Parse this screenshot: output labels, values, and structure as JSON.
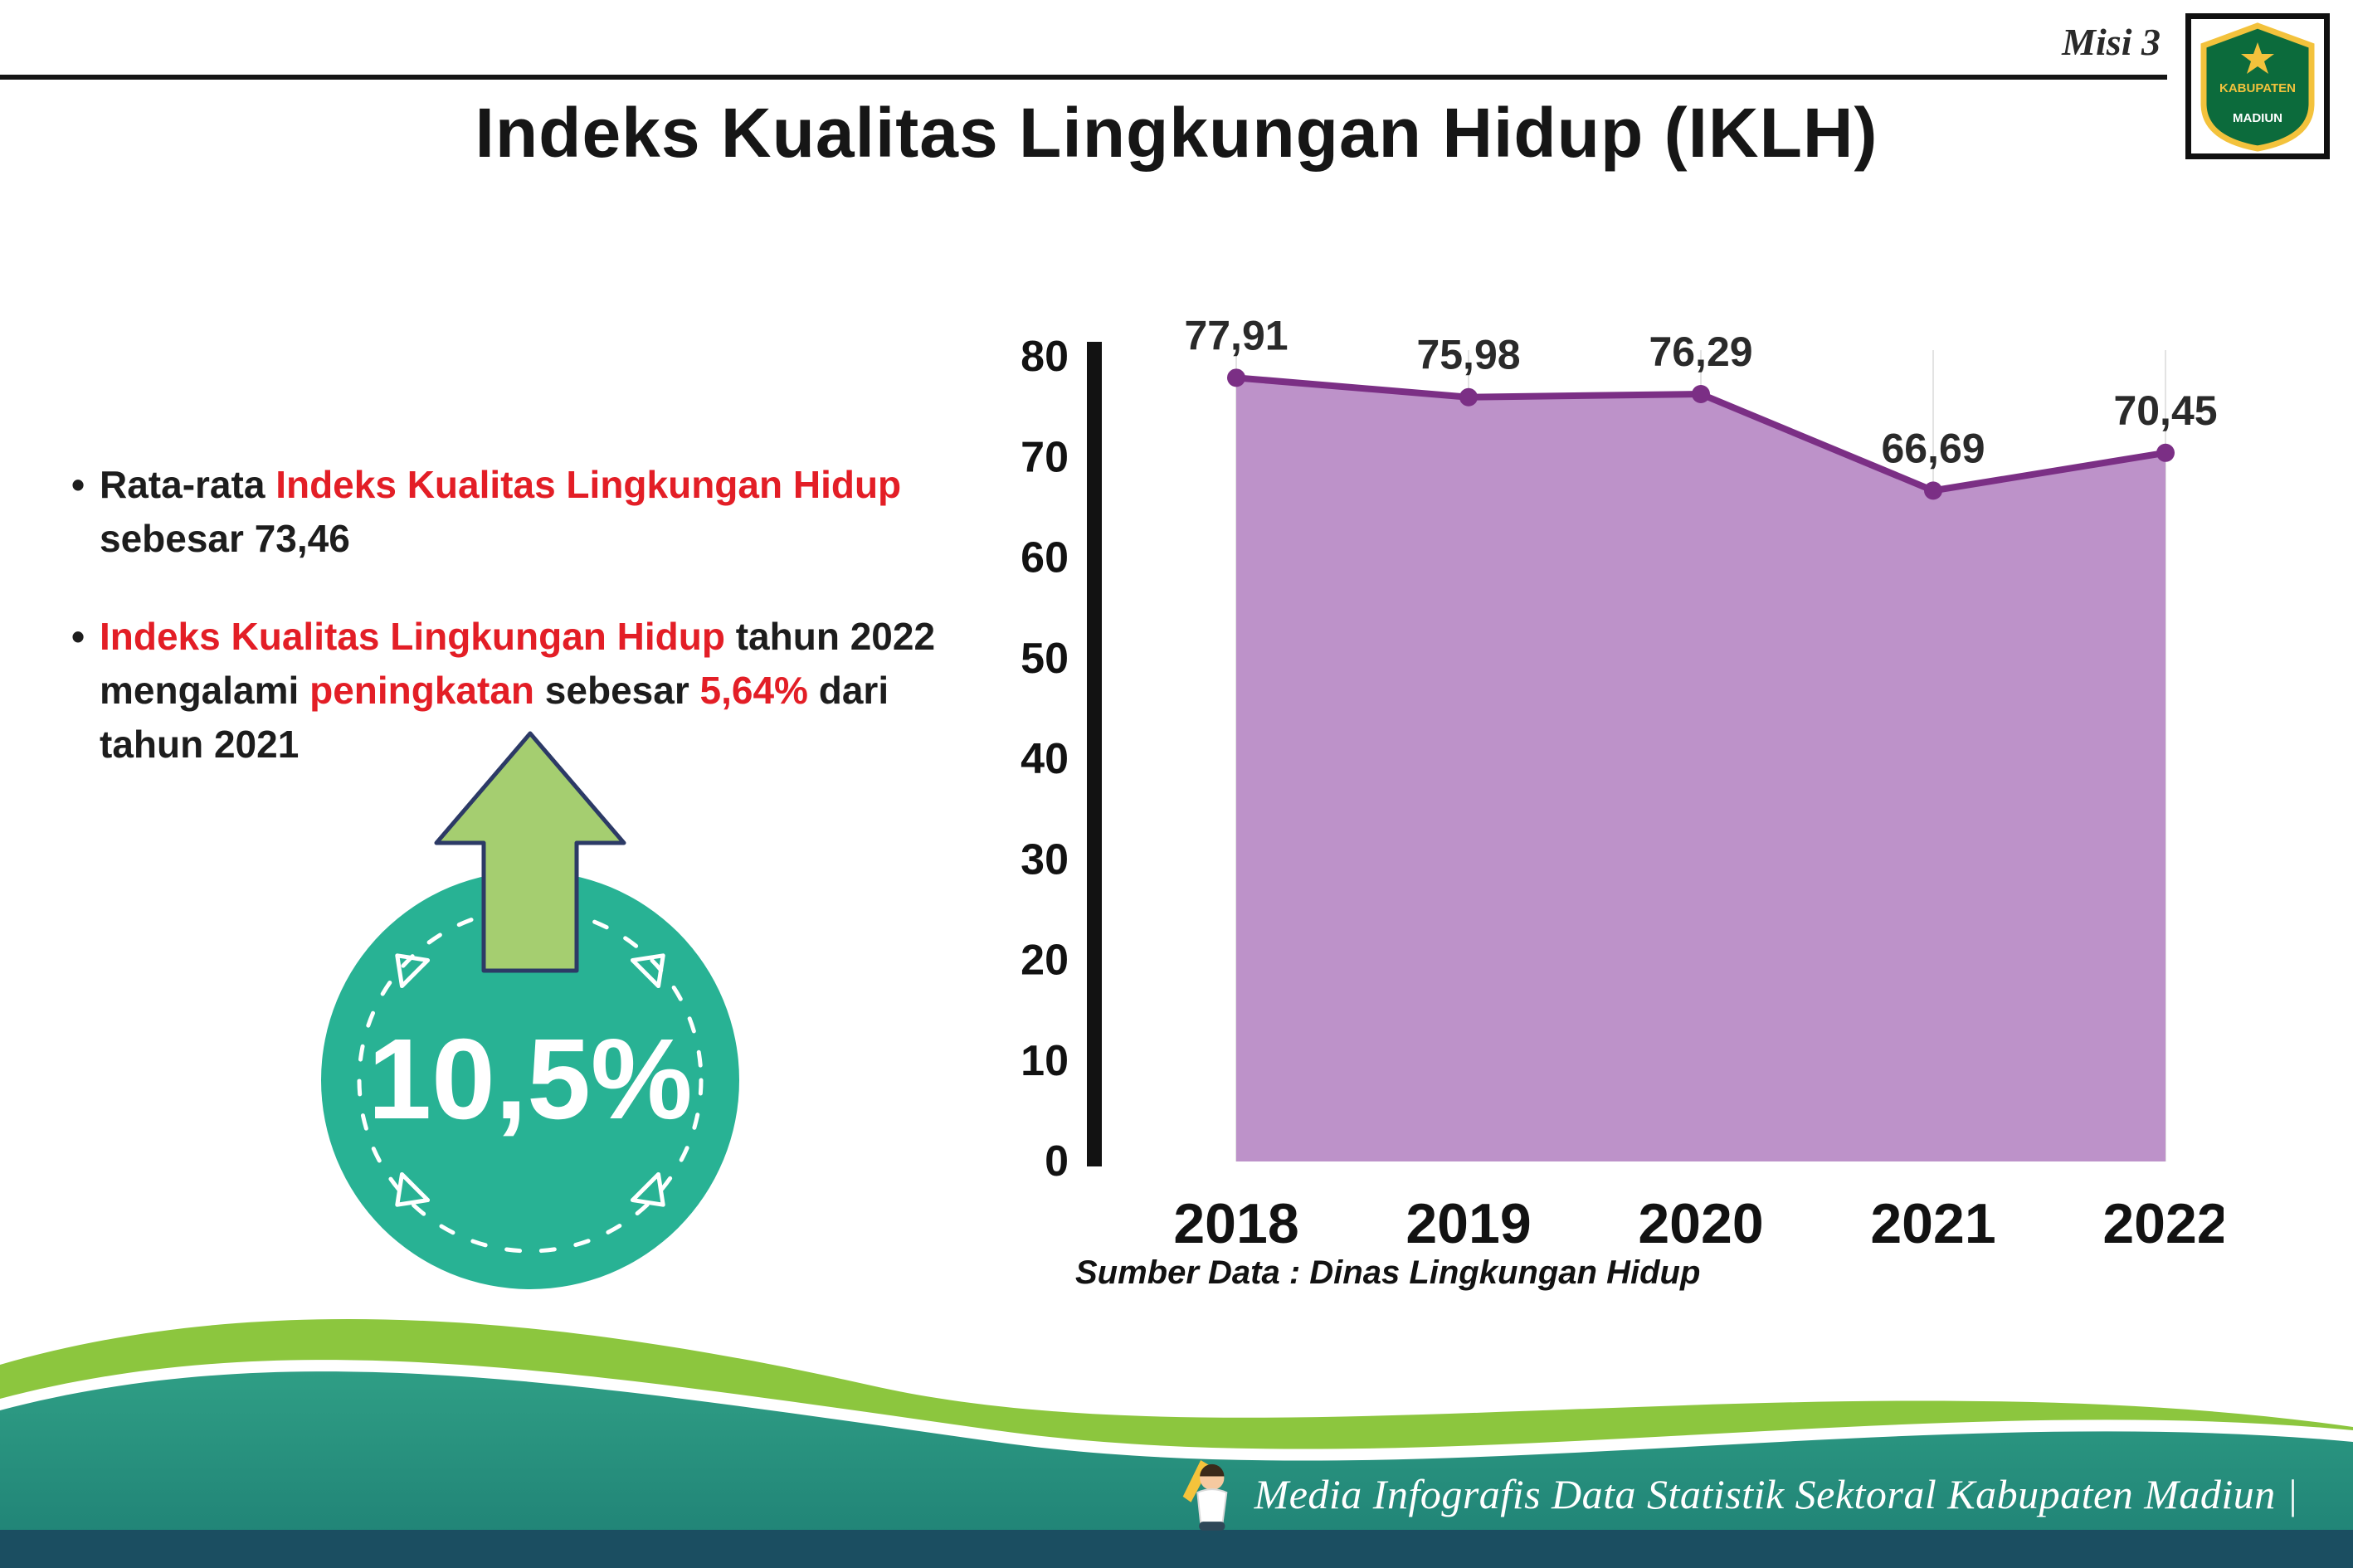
{
  "page": {
    "misi_label": "Misi 3",
    "title": "Indeks Kualitas Lingkungan Hidup (IKLH)"
  },
  "logo": {
    "top_text": "KABUPATEN",
    "bottom_text": "MADIUN"
  },
  "bullets": [
    {
      "lines": [
        [
          {
            "t": "Rata-rata ",
            "red": false
          },
          {
            "t": "Indeks Kualitas Lingkungan Hidup",
            "red": true
          }
        ],
        [
          {
            "t": "sebesar 73,46",
            "red": false
          }
        ]
      ]
    },
    {
      "lines": [
        [
          {
            "t": "Indeks Kualitas Lingkungan Hidup",
            "red": true
          },
          {
            "t": " tahun 2022",
            "red": false
          }
        ],
        [
          {
            "t": "mengalami ",
            "red": false
          },
          {
            "t": "peningkatan",
            "red": true
          },
          {
            "t": " sebesar ",
            "red": false
          },
          {
            "t": "5,64%",
            "red": true
          },
          {
            "t": " dari",
            "red": false
          }
        ],
        [
          {
            "t": "tahun 2021",
            "red": false
          }
        ]
      ]
    }
  ],
  "badge": {
    "value": "10,5%"
  },
  "chart_data": {
    "type": "area",
    "categories": [
      "2018",
      "2019",
      "2020",
      "2021",
      "2022"
    ],
    "values": [
      77.91,
      75.98,
      76.29,
      66.69,
      70.45
    ],
    "value_labels": [
      "77,91",
      "75,98",
      "76,29",
      "66,69",
      "70,45"
    ],
    "ylim": [
      0,
      80
    ],
    "ytick_step": 10,
    "grid": "vertical-light",
    "legend": "none",
    "source": "Sumber Data : Dinas Lingkungan Hidup",
    "colors": {
      "area": "#bd92c9",
      "line": "#7b2f85",
      "point": "#7b2f85",
      "value_label": "#2a2a2a",
      "axis": "#121212",
      "gridline": "#e3e3e3"
    }
  },
  "footer": {
    "credit": "Media Infografis Data Statistik Sektoral Kabupaten Madiun |"
  }
}
